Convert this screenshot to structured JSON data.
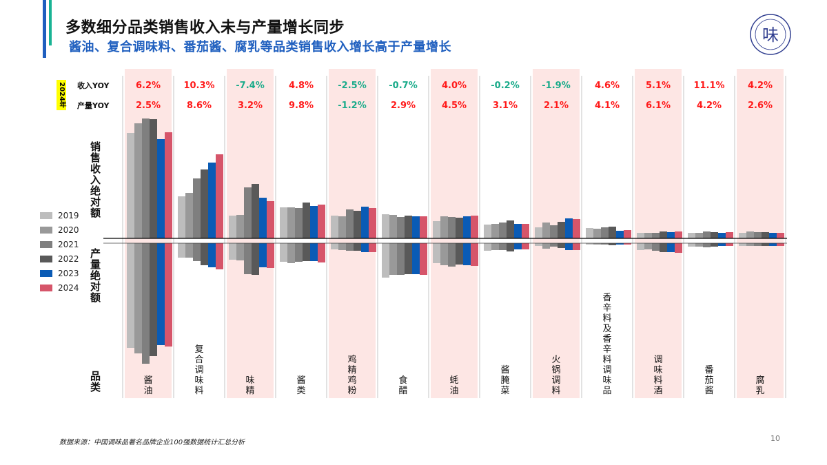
{
  "header": {
    "title": "多数细分品类销售收入未与产量增长同步",
    "subtitle": "酱油、复合调味料、番茄酱、腐乳等品类销售收入增长高于产量增长"
  },
  "logo": {
    "glyph": "味",
    "alt_text": "China Condiment Industry Association seal"
  },
  "table": {
    "year_tag": "2024年",
    "revenue_yoy_label": "收入YOY",
    "production_yoy_label": "产量YOY"
  },
  "axis_labels": {
    "revenue": "销售收入绝对额",
    "production": "产量绝对额",
    "category": "品类"
  },
  "colors": {
    "positive": "#ff1a1a",
    "negative": "#1aab8a",
    "highlight_column": "#fde6e4",
    "series": [
      "#bdbdbd",
      "#999999",
      "#7f7f7f",
      "#595959",
      "#0a5bb5",
      "#d6556a"
    ]
  },
  "chart_data": {
    "type": "bar",
    "note_scale": "relative bar lengths, no numeric axis shown",
    "categories": [
      "酱油",
      "复合调味料",
      "味精",
      "酱类",
      "鸡精鸡粉",
      "食醋",
      "蚝油",
      "酱腌菜",
      "火锅调料",
      "香辛料及香辛料调味品",
      "调味料酒",
      "番茄酱",
      "腐乳"
    ],
    "highlighted": [
      true,
      false,
      true,
      false,
      true,
      false,
      true,
      false,
      true,
      false,
      true,
      false,
      true
    ],
    "revenue_yoy_2024": [
      "6.2%",
      "10.3%",
      "-7.4%",
      "4.8%",
      "-2.5%",
      "-0.7%",
      "4.0%",
      "-0.2%",
      "-1.9%",
      "4.6%",
      "5.1%",
      "11.1%",
      "4.2%"
    ],
    "production_yoy_2024": [
      "2.5%",
      "8.6%",
      "3.2%",
      "9.8%",
      "-1.2%",
      "2.9%",
      "4.5%",
      "3.1%",
      "2.1%",
      "4.1%",
      "6.1%",
      "4.2%",
      "2.6%"
    ],
    "years": [
      "2019",
      "2020",
      "2021",
      "2022",
      "2023",
      "2024"
    ],
    "revenue": [
      [
        153,
        167,
        174,
        173,
        144,
        154
      ],
      [
        61,
        66,
        87,
        100,
        110,
        122
      ],
      [
        33,
        34,
        74,
        79,
        59,
        54
      ],
      [
        45,
        45,
        44,
        52,
        47,
        49
      ],
      [
        33,
        32,
        42,
        40,
        46,
        44
      ],
      [
        35,
        34,
        31,
        33,
        32,
        32
      ],
      [
        25,
        32,
        31,
        30,
        32,
        33
      ],
      [
        20,
        21,
        23,
        26,
        21,
        21
      ],
      [
        16,
        23,
        19,
        24,
        29,
        28
      ],
      [
        15,
        14,
        16,
        17,
        11,
        12
      ],
      [
        8,
        8,
        8,
        10,
        9,
        10
      ],
      [
        8,
        8,
        10,
        9,
        8,
        9
      ],
      [
        8,
        10,
        9,
        9,
        8,
        8
      ]
    ],
    "production": [
      [
        152,
        160,
        175,
        164,
        148,
        150
      ],
      [
        21,
        21,
        26,
        32,
        35,
        38
      ],
      [
        24,
        25,
        45,
        46,
        35,
        36
      ],
      [
        27,
        29,
        27,
        26,
        26,
        28
      ],
      [
        9,
        10,
        11,
        11,
        13,
        13
      ],
      [
        50,
        46,
        46,
        45,
        45,
        46
      ],
      [
        29,
        32,
        34,
        31,
        32,
        33
      ],
      [
        11,
        10,
        10,
        12,
        9,
        9
      ],
      [
        4,
        8,
        5,
        7,
        10,
        10
      ],
      [
        2,
        2,
        2,
        3,
        2,
        2
      ],
      [
        10,
        9,
        11,
        13,
        13,
        14
      ],
      [
        5,
        5,
        6,
        5,
        4,
        4
      ],
      [
        4,
        4,
        4,
        4,
        4,
        4
      ]
    ],
    "legend_position": "left"
  },
  "footer": {
    "source": "数据来源：中国调味品著名品牌企业100强数据统计汇总分析",
    "page_number": "10"
  }
}
